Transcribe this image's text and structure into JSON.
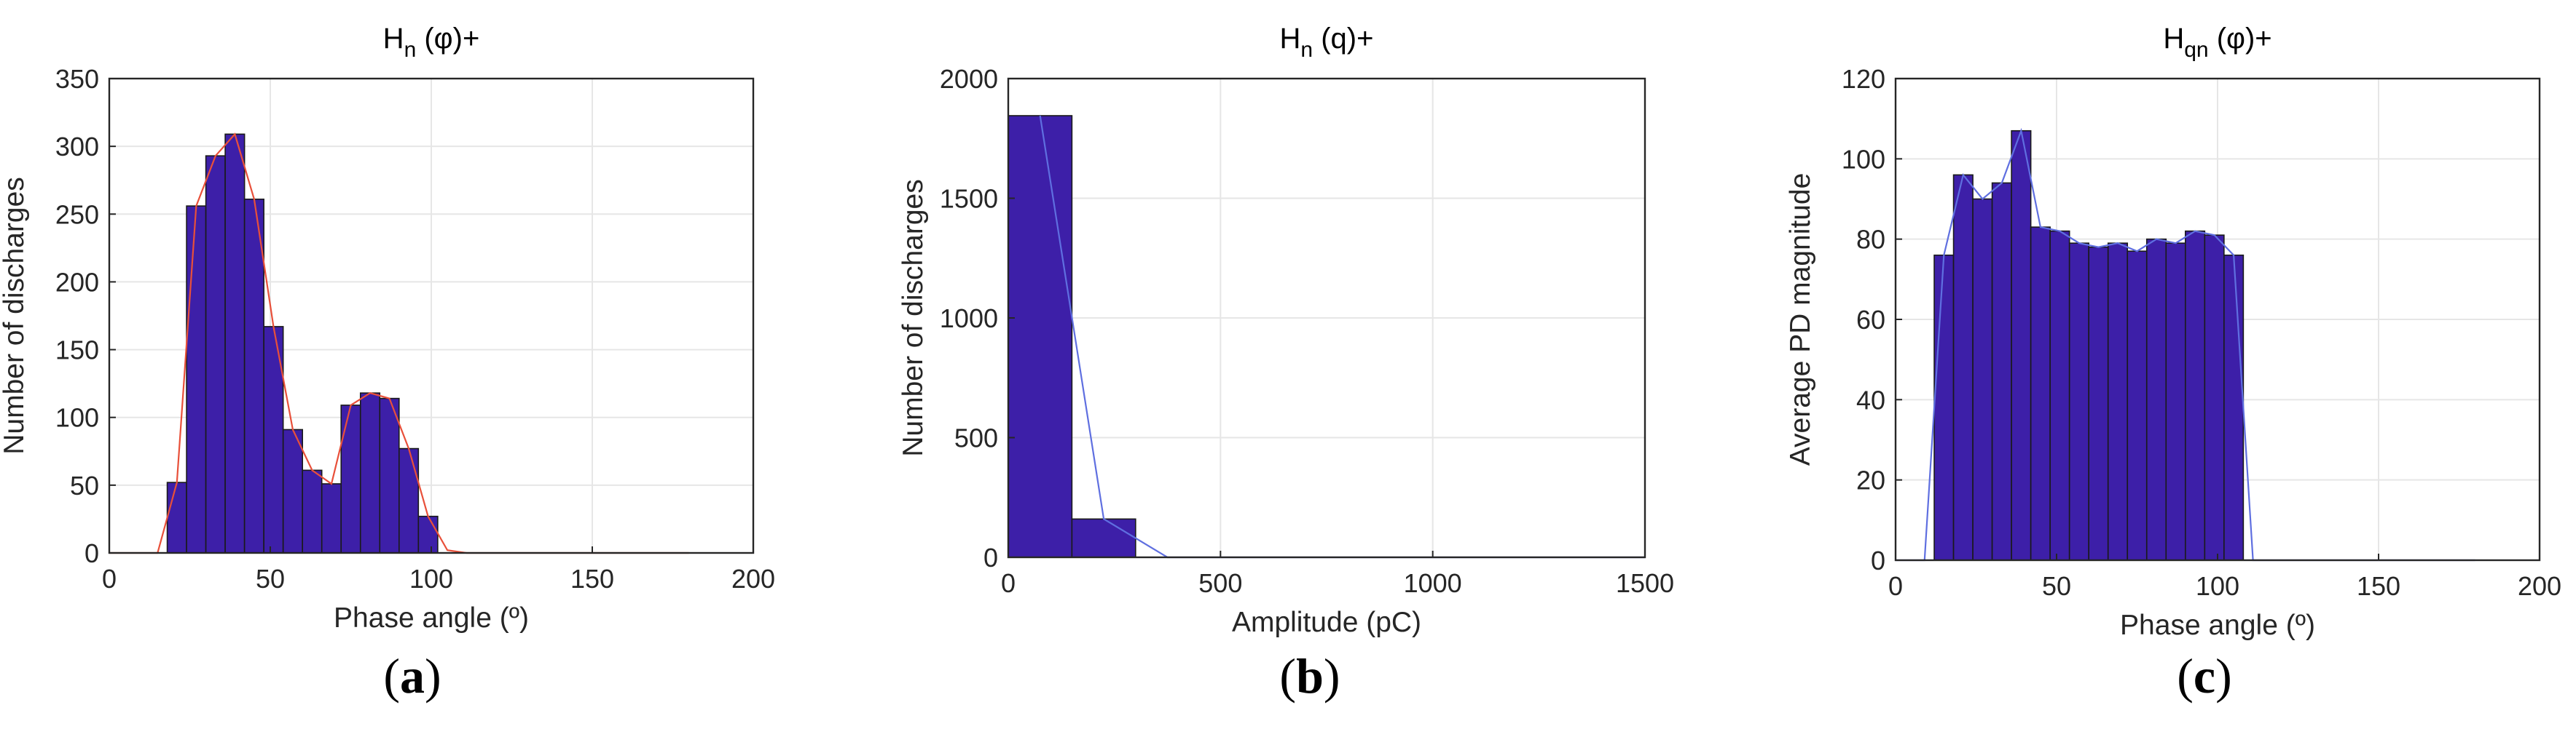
{
  "colors": {
    "bar_fill": "#3d1fa8",
    "bar_edge": "#1a1a1a",
    "grid": "#e6e6e6",
    "axis": "#262626",
    "line_a": "#e8503a",
    "line_b": "#5f6fe0"
  },
  "panels": [
    {
      "label_open": "(",
      "label_letter": "a",
      "label_close": ")"
    },
    {
      "label_open": "(",
      "label_letter": "b",
      "label_close": ")"
    },
    {
      "label_open": "(",
      "label_letter": "c",
      "label_close": ")"
    }
  ],
  "chart_data": [
    {
      "type": "bar",
      "title_main": "H",
      "title_sub": "n",
      "title_rest": " (φ)+",
      "xlabel": "Phase angle (º)",
      "ylabel": "Number of discharges",
      "xlim": [
        0,
        200
      ],
      "ylim": [
        0,
        350
      ],
      "xticks": [
        0,
        50,
        100,
        150,
        200
      ],
      "yticks": [
        0,
        50,
        100,
        150,
        200,
        250,
        300,
        350
      ],
      "grid": true,
      "bin_width": 6,
      "bin_start": 18,
      "values": [
        52,
        256,
        293,
        309,
        261,
        167,
        91,
        61,
        51,
        109,
        118,
        114,
        77,
        27
      ],
      "overlay_line": {
        "color": "line_a",
        "x": [
          0,
          15,
          21,
          27,
          33,
          39,
          45,
          51,
          57,
          63,
          69,
          75,
          81,
          87,
          93,
          99,
          105,
          111,
          117,
          180
        ],
        "y": [
          0,
          0,
          52,
          256,
          293,
          309,
          261,
          167,
          91,
          61,
          51,
          109,
          118,
          114,
          77,
          27,
          2,
          0,
          0,
          0
        ]
      }
    },
    {
      "type": "bar",
      "title_main": "H",
      "title_sub": "n",
      "title_rest": " (q)+",
      "xlabel": "Amplitude (pC)",
      "ylabel": "Number of discharges",
      "xlim": [
        0,
        1500
      ],
      "ylim": [
        0,
        2000
      ],
      "xticks": [
        0,
        500,
        1000,
        1500
      ],
      "yticks": [
        0,
        500,
        1000,
        1500,
        2000
      ],
      "grid": true,
      "bin_width": 150,
      "bin_start": 0,
      "values": [
        1845,
        160
      ],
      "overlay_line": {
        "color": "line_b",
        "x": [
          75,
          225,
          375,
          1500
        ],
        "y": [
          1845,
          160,
          0,
          0
        ]
      }
    },
    {
      "type": "bar",
      "title_main": "H",
      "title_sub": "qn",
      "title_rest": " (φ)+",
      "xlabel": "Phase angle (º)",
      "ylabel": "Average PD magnitude",
      "xlim": [
        0,
        200
      ],
      "ylim": [
        0,
        120
      ],
      "xticks": [
        0,
        50,
        100,
        150,
        200
      ],
      "yticks": [
        0,
        20,
        40,
        60,
        80,
        100,
        120
      ],
      "grid": true,
      "bin_width": 6,
      "bin_start": 12,
      "values": [
        76,
        96,
        90,
        94,
        107,
        83,
        82,
        79,
        78,
        79,
        77,
        80,
        79,
        82,
        81,
        76
      ],
      "overlay_line": {
        "color": "line_b",
        "x": [
          0,
          9,
          15,
          21,
          27,
          33,
          39,
          45,
          51,
          57,
          63,
          69,
          75,
          81,
          87,
          93,
          99,
          105,
          111,
          117,
          180
        ],
        "y": [
          0,
          0,
          76,
          96,
          90,
          94,
          107,
          83,
          82,
          79,
          78,
          79,
          77,
          80,
          79,
          82,
          81,
          76,
          0,
          0,
          0
        ]
      }
    }
  ]
}
